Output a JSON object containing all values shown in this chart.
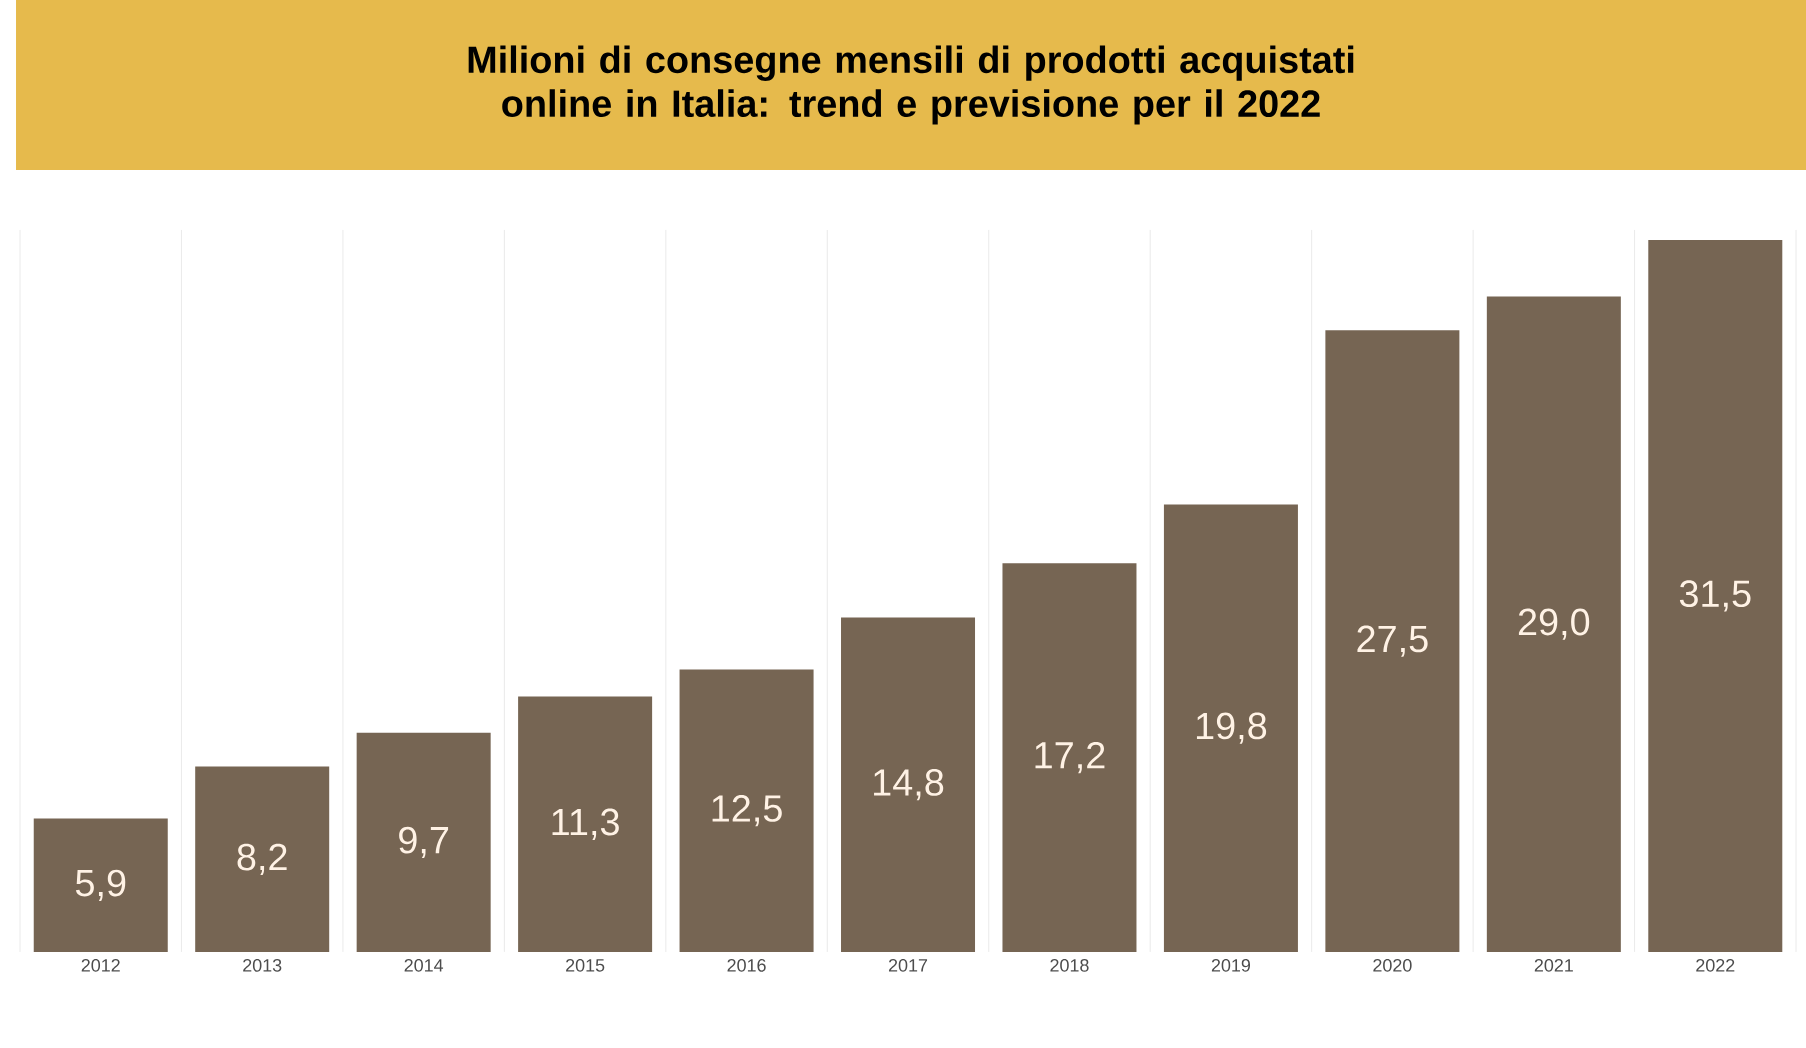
{
  "chart_data": {
    "type": "bar",
    "title": "Milioni di consegne mensili di prodotti acquistati online in Italia: trend e previsione per il 2022",
    "categories": [
      "2012",
      "2013",
      "2014",
      "2015",
      "2016",
      "2017",
      "2018",
      "2019",
      "2020",
      "2021",
      "2022"
    ],
    "values": [
      5.9,
      8.2,
      9.7,
      11.3,
      12.5,
      14.8,
      17.2,
      19.8,
      27.5,
      29.0,
      31.5
    ],
    "value_labels": [
      "5,9",
      "8,2",
      "9,7",
      "11,3",
      "12,5",
      "14,8",
      "17,2",
      "19,8",
      "27,5",
      "29,0",
      "31,5"
    ],
    "color": "#766553",
    "grid": "x",
    "tick_labels": "x"
  }
}
